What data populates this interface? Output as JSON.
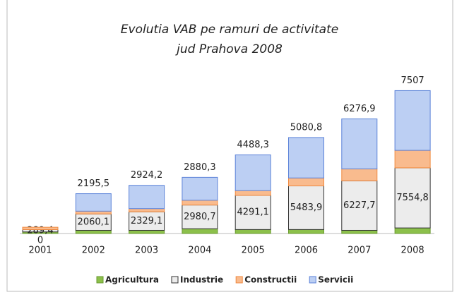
{
  "chart_data": {
    "type": "stacked-bar",
    "title": [
      "Evolutia VAB pe ramuri de activitate",
      "jud Prahova 2008"
    ],
    "categories": [
      "2001",
      "2002",
      "2003",
      "2004",
      "2005",
      "2006",
      "2007",
      "2008"
    ],
    "series": [
      {
        "name": "Agricultura",
        "color": "#8cc04b",
        "values": [
          200,
          400,
          400,
          600,
          500,
          500,
          400,
          700
        ]
      },
      {
        "name": "Industrie",
        "color": "#ececec",
        "values": [
          289.4,
          2060.1,
          2329.1,
          2980.7,
          4291.1,
          5483.9,
          6227.7,
          7554.8
        ],
        "value_labels": [
          "289,4",
          "2060,1",
          "2329,1",
          "2980,7",
          "4291,1",
          "5483,9",
          "6227,7",
          "7554,8"
        ]
      },
      {
        "name": "Constructii",
        "color": "#f9bb8e",
        "values": [
          300,
          350,
          400,
          600,
          600,
          1000,
          1500,
          2200
        ]
      },
      {
        "name": "Servicii",
        "color": "#bccff3",
        "values": [
          0,
          2195.5,
          2924.2,
          2880.3,
          4488.3,
          5080.8,
          6276.9,
          7507
        ],
        "value_labels": [
          "0",
          "2195,5",
          "2924,2",
          "2880,3",
          "4488,3",
          "5080,8",
          "6276,9",
          "7507"
        ]
      }
    ],
    "legend": "bottom"
  }
}
